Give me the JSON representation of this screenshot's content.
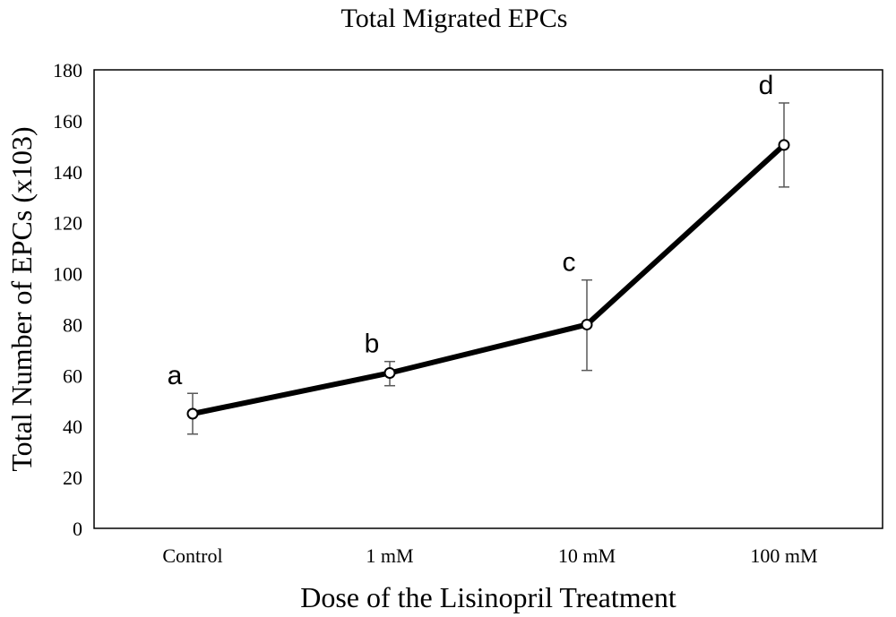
{
  "chart_data": {
    "type": "line",
    "title": "Total Migrated EPCs",
    "xlabel": "Dose of the Lisinopril Treatment",
    "ylabel": "Total Number of EPCs (x103)",
    "categories": [
      "Control",
      "1 mM",
      "10 mM",
      "100 mM"
    ],
    "series": [
      {
        "values": [
          45,
          61,
          80,
          150.5
        ],
        "error_upper": [
          53,
          65.5,
          97.5,
          167
        ],
        "error_lower": [
          37,
          56,
          62,
          134
        ],
        "point_labels": [
          "a",
          "b",
          "c",
          "d"
        ],
        "color": "#000000"
      }
    ],
    "ylim": [
      0,
      180
    ],
    "yticks": [
      0,
      20,
      40,
      60,
      80,
      100,
      120,
      140,
      160,
      180
    ],
    "grid": false,
    "legend": "none",
    "marker": "open-circle"
  }
}
